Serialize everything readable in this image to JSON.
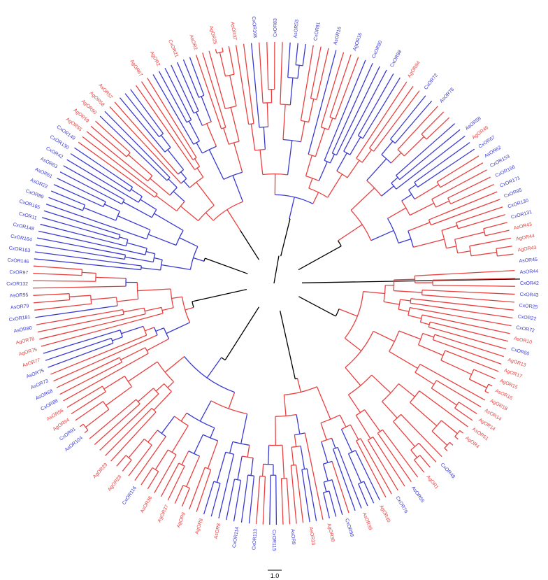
{
  "colors": {
    "red_clade": "#e8403f",
    "blue_clade": "#3a3ad0",
    "backbone": "#000000"
  },
  "scale_bar": {
    "label": "1.0"
  },
  "labels": {
    "top": [
      {
        "text": "AgOR67",
        "color": "red"
      },
      {
        "text": "AgOR2",
        "color": "red"
      },
      {
        "text": "CxOR21",
        "color": "red"
      },
      {
        "text": "AsOR2",
        "color": "red"
      },
      {
        "text": "AgOR25",
        "color": "red"
      },
      {
        "text": "AsOR37",
        "color": "red"
      },
      {
        "text": "CxOR108",
        "color": "blue"
      },
      {
        "text": "CxOR83",
        "color": "blue"
      },
      {
        "text": "AsOR53",
        "color": "blue"
      },
      {
        "text": "CxOR81",
        "color": "blue"
      },
      {
        "text": "AsOR16",
        "color": "blue"
      },
      {
        "text": "AgOR16",
        "color": "blue"
      },
      {
        "text": "CxOR80",
        "color": "blue"
      },
      {
        "text": "CxOR88",
        "color": "blue"
      },
      {
        "text": "AgOR84",
        "color": "red"
      },
      {
        "text": "CxOR72",
        "color": "blue"
      },
      {
        "text": "AsOR78",
        "color": "blue"
      }
    ],
    "right": [
      {
        "text": "AsOR58",
        "color": "blue"
      },
      {
        "text": "AgOR46",
        "color": "red"
      },
      {
        "text": "CxOR67",
        "color": "blue"
      },
      {
        "text": "AsOR62",
        "color": "blue"
      },
      {
        "text": "CxOR153",
        "color": "blue"
      },
      {
        "text": "CxOR156",
        "color": "blue"
      },
      {
        "text": "CxOR171",
        "color": "blue"
      },
      {
        "text": "CxOR95",
        "color": "blue"
      },
      {
        "text": "CxOR130",
        "color": "blue"
      },
      {
        "text": "CxOR131",
        "color": "blue"
      },
      {
        "text": "AsOR43",
        "color": "red"
      },
      {
        "text": "AgOR44",
        "color": "red"
      },
      {
        "text": "AgOR43",
        "color": "red"
      },
      {
        "text": "AsOR45",
        "color": "blue"
      },
      {
        "text": "AsOR44",
        "color": "blue"
      },
      {
        "text": "CxOR42",
        "color": "blue"
      },
      {
        "text": "CxOR43",
        "color": "blue"
      },
      {
        "text": "CxOR25",
        "color": "blue"
      },
      {
        "text": "CxOR22",
        "color": "blue"
      },
      {
        "text": "CxOR72",
        "color": "blue"
      },
      {
        "text": "AsOR10",
        "color": "red"
      },
      {
        "text": "CxOR50",
        "color": "blue"
      },
      {
        "text": "AgOR13",
        "color": "red"
      },
      {
        "text": "AgOR17",
        "color": "red"
      },
      {
        "text": "AgOR15",
        "color": "red"
      },
      {
        "text": "AsOR16",
        "color": "red"
      },
      {
        "text": "AgOR18",
        "color": "red"
      },
      {
        "text": "AsOR14",
        "color": "red"
      },
      {
        "text": "AgOR14",
        "color": "red"
      },
      {
        "text": "AsOR51",
        "color": "red"
      },
      {
        "text": "AgOR4",
        "color": "red"
      }
    ],
    "bottom": [
      {
        "text": "CxOR48",
        "color": "blue"
      },
      {
        "text": "AgOR1",
        "color": "red"
      },
      {
        "text": "AsOR55",
        "color": "blue"
      },
      {
        "text": "CxOR76",
        "color": "blue"
      },
      {
        "text": "AgOR40",
        "color": "red"
      },
      {
        "text": "AsOR39",
        "color": "red"
      },
      {
        "text": "CxOR99",
        "color": "blue"
      },
      {
        "text": "AgOR38",
        "color": "red"
      },
      {
        "text": "AsOR33",
        "color": "red"
      },
      {
        "text": "AsOR9",
        "color": "blue"
      },
      {
        "text": "CxOR115",
        "color": "blue"
      },
      {
        "text": "CxOR113",
        "color": "blue"
      },
      {
        "text": "CxOR114",
        "color": "blue"
      },
      {
        "text": "AsOR8",
        "color": "red"
      },
      {
        "text": "AgOR8",
        "color": "red"
      },
      {
        "text": "AgOR9",
        "color": "red"
      },
      {
        "text": "AgOR37",
        "color": "red"
      },
      {
        "text": "AsOR36",
        "color": "red"
      },
      {
        "text": "CxOR116",
        "color": "blue"
      },
      {
        "text": "AgOR28",
        "color": "red"
      },
      {
        "text": "AgOR29",
        "color": "red"
      }
    ],
    "left": [
      {
        "text": "AsOR104",
        "color": "blue"
      },
      {
        "text": "CxOR91",
        "color": "blue"
      },
      {
        "text": "AgOR94",
        "color": "red"
      },
      {
        "text": "AsOR56",
        "color": "red"
      },
      {
        "text": "CxOR88",
        "color": "blue"
      },
      {
        "text": "AsOR68",
        "color": "blue"
      },
      {
        "text": "AsOR73",
        "color": "blue"
      },
      {
        "text": "AsOR75",
        "color": "blue"
      },
      {
        "text": "AsOR77",
        "color": "red"
      },
      {
        "text": "AgOR75",
        "color": "red"
      },
      {
        "text": "AgOR78",
        "color": "red"
      },
      {
        "text": "AsOR80",
        "color": "blue"
      },
      {
        "text": "CxOR181",
        "color": "blue"
      },
      {
        "text": "AsOR79",
        "color": "blue"
      },
      {
        "text": "AsOR95",
        "color": "blue"
      },
      {
        "text": "CxOR132",
        "color": "blue"
      },
      {
        "text": "CxOR97",
        "color": "blue"
      },
      {
        "text": "CxOR146",
        "color": "blue"
      },
      {
        "text": "CxOR163",
        "color": "blue"
      },
      {
        "text": "CxOR164",
        "color": "blue"
      },
      {
        "text": "CxOR148",
        "color": "blue"
      },
      {
        "text": "CxOR11",
        "color": "blue"
      },
      {
        "text": "CxOR165",
        "color": "blue"
      },
      {
        "text": "CxOR89",
        "color": "blue"
      },
      {
        "text": "AsOR22",
        "color": "blue"
      },
      {
        "text": "AsOR61",
        "color": "blue"
      },
      {
        "text": "AsOR63",
        "color": "blue"
      },
      {
        "text": "CxOR42",
        "color": "blue"
      },
      {
        "text": "CxOR130",
        "color": "blue"
      },
      {
        "text": "CxOR149",
        "color": "blue"
      },
      {
        "text": "AgOR55",
        "color": "red"
      },
      {
        "text": "AgOR59",
        "color": "red"
      },
      {
        "text": "AgOR60",
        "color": "red"
      },
      {
        "text": "AgOR58",
        "color": "red"
      },
      {
        "text": "AsOR57",
        "color": "red"
      }
    ]
  }
}
